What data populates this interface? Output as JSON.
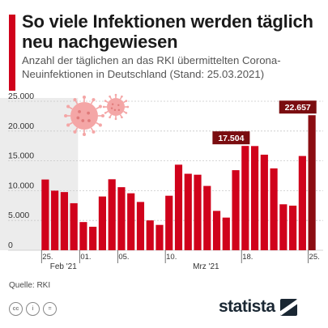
{
  "header": {
    "title": "So viele Infektionen werden täglich neu nachgewiesen",
    "subtitle": "Anzahl der täglichen an das RKI übermittelten Corona-Neuinfektionen in Deutschland (Stand: 25.03.2021)"
  },
  "footer": {
    "source": "Quelle: RKI",
    "brand": "statista",
    "license_icons": [
      "cc-icon",
      "attribution-icon",
      "equals-icon"
    ]
  },
  "colors": {
    "accent": "#d0021b",
    "bar": "#d0021b",
    "bar_highlight": "#8b0d12",
    "label_bg": "#7a0d10",
    "shaded_region": "#ececec",
    "virus": "#f4a6a6"
  },
  "chart_data": {
    "type": "bar",
    "title": "",
    "xlabel": "",
    "ylabel": "",
    "ylim": [
      0,
      25000
    ],
    "grid": true,
    "y_ticks": [
      "0",
      "5.000",
      "10.000",
      "15.000",
      "20.000",
      "25.000"
    ],
    "categories": [
      "25.02.",
      "26.02.",
      "27.02.",
      "28.02.",
      "01.03.",
      "02.03.",
      "03.03.",
      "04.03.",
      "05.03.",
      "06.03.",
      "07.03.",
      "08.03.",
      "09.03.",
      "10.03.",
      "11.03.",
      "12.03.",
      "13.03.",
      "14.03.",
      "15.03.",
      "16.03.",
      "17.03.",
      "18.03.",
      "19.03.",
      "20.03.",
      "21.03.",
      "22.03.",
      "23.03.",
      "24.03.",
      "25.03."
    ],
    "values": [
      11869,
      9997,
      9762,
      7890,
      4732,
      3943,
      9019,
      11912,
      10580,
      9557,
      8103,
      5011,
      4252,
      9146,
      14356,
      12834,
      12674,
      10790,
      6604,
      5480,
      13435,
      17504,
      17482,
      16033,
      13733,
      7709,
      7485,
      15813,
      22657
    ],
    "x_tick_labels": [
      {
        "index": 0,
        "label": "25."
      },
      {
        "index": 4,
        "label": "01."
      },
      {
        "index": 8,
        "label": "05."
      },
      {
        "index": 13,
        "label": "10."
      },
      {
        "index": 21,
        "label": "18."
      },
      {
        "index": 28,
        "label": "25."
      }
    ],
    "month_labels": [
      {
        "index": 1,
        "label": "Feb '21"
      },
      {
        "index": 16,
        "label": "Mrz '21"
      }
    ],
    "annotations": [
      {
        "index": 21,
        "label": "17.504"
      },
      {
        "index": 28,
        "label": "22.657"
      }
    ]
  }
}
